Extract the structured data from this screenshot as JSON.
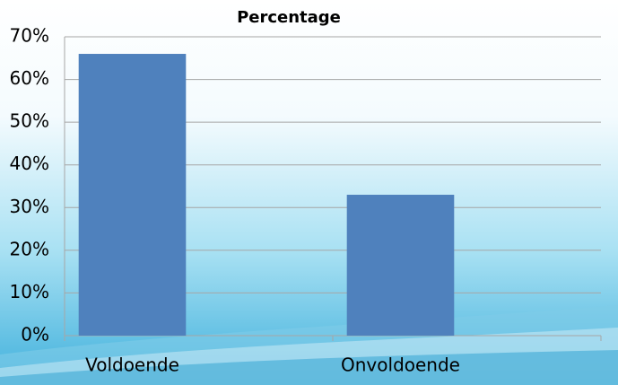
{
  "chart_data": {
    "type": "bar",
    "title": "Percentage",
    "categories": [
      "Voldoende",
      "Onvoldoende"
    ],
    "values": [
      66,
      33
    ],
    "color": "#4f81bd",
    "ylim": [
      0,
      70
    ],
    "yticks": [
      {
        "value": 0,
        "label": "0%"
      },
      {
        "value": 10,
        "label": "10%"
      },
      {
        "value": 20,
        "label": "20%"
      },
      {
        "value": 30,
        "label": "30%"
      },
      {
        "value": 40,
        "label": "40%"
      },
      {
        "value": 50,
        "label": "50%"
      },
      {
        "value": 60,
        "label": "60%"
      },
      {
        "value": 70,
        "label": "70%"
      }
    ],
    "grid": true
  }
}
